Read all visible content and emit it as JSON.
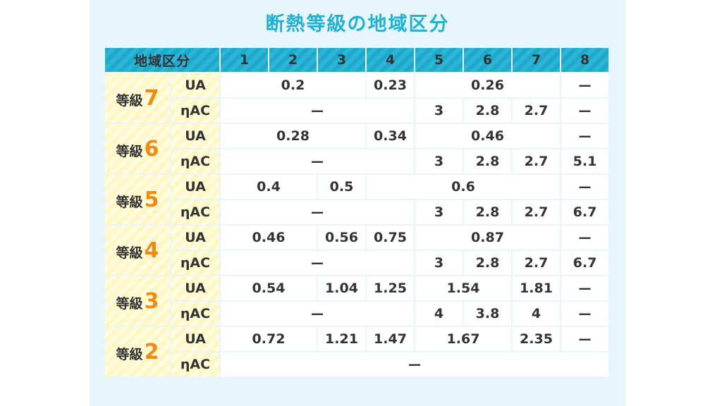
{
  "title": "断熱等級の地域区分",
  "header": {
    "label": "地域区分",
    "regions": [
      "1",
      "2",
      "3",
      "4",
      "5",
      "6",
      "7",
      "8"
    ]
  },
  "grades": [
    {
      "prefix": "等級",
      "num": "7",
      "ua": [
        {
          "v": "0.2",
          "span": 3
        },
        {
          "v": "0.23",
          "span": 1
        },
        {
          "v": "0.26",
          "span": 3
        },
        {
          "v": "ー",
          "span": 1
        }
      ],
      "eta": [
        {
          "v": "ー",
          "span": 4
        },
        {
          "v": "3",
          "span": 1
        },
        {
          "v": "2.8",
          "span": 1
        },
        {
          "v": "2.7",
          "span": 1
        },
        {
          "v": "ー",
          "span": 1
        }
      ]
    },
    {
      "prefix": "等級",
      "num": "6",
      "ua": [
        {
          "v": "0.28",
          "span": 3
        },
        {
          "v": "0.34",
          "span": 1
        },
        {
          "v": "0.46",
          "span": 3
        },
        {
          "v": "ー",
          "span": 1
        }
      ],
      "eta": [
        {
          "v": "ー",
          "span": 4
        },
        {
          "v": "3",
          "span": 1
        },
        {
          "v": "2.8",
          "span": 1
        },
        {
          "v": "2.7",
          "span": 1
        },
        {
          "v": "5.1",
          "span": 1
        }
      ]
    },
    {
      "prefix": "等級",
      "num": "5",
      "ua": [
        {
          "v": "0.4",
          "span": 2
        },
        {
          "v": "0.5",
          "span": 1
        },
        {
          "v": "0.6",
          "span": 4
        },
        {
          "v": "ー",
          "span": 1
        }
      ],
      "eta": [
        {
          "v": "ー",
          "span": 4
        },
        {
          "v": "3",
          "span": 1
        },
        {
          "v": "2.8",
          "span": 1
        },
        {
          "v": "2.7",
          "span": 1
        },
        {
          "v": "6.7",
          "span": 1
        }
      ]
    },
    {
      "prefix": "等級",
      "num": "4",
      "ua": [
        {
          "v": "0.46",
          "span": 2
        },
        {
          "v": "0.56",
          "span": 1
        },
        {
          "v": "0.75",
          "span": 1
        },
        {
          "v": "0.87",
          "span": 3
        },
        {
          "v": "ー",
          "span": 1
        }
      ],
      "eta": [
        {
          "v": "ー",
          "span": 4
        },
        {
          "v": "3",
          "span": 1
        },
        {
          "v": "2.8",
          "span": 1
        },
        {
          "v": "2.7",
          "span": 1
        },
        {
          "v": "6.7",
          "span": 1
        }
      ]
    },
    {
      "prefix": "等級",
      "num": "3",
      "ua": [
        {
          "v": "0.54",
          "span": 2
        },
        {
          "v": "1.04",
          "span": 1
        },
        {
          "v": "1.25",
          "span": 1
        },
        {
          "v": "1.54",
          "span": 2
        },
        {
          "v": "1.81",
          "span": 1
        },
        {
          "v": "ー",
          "span": 1
        }
      ],
      "eta": [
        {
          "v": "ー",
          "span": 4
        },
        {
          "v": "4",
          "span": 1
        },
        {
          "v": "3.8",
          "span": 1
        },
        {
          "v": "4",
          "span": 1
        },
        {
          "v": "ー",
          "span": 1
        }
      ]
    },
    {
      "prefix": "等級",
      "num": "2",
      "ua": [
        {
          "v": "0.72",
          "span": 2
        },
        {
          "v": "1.21",
          "span": 1
        },
        {
          "v": "1.47",
          "span": 1
        },
        {
          "v": "1.67",
          "span": 2
        },
        {
          "v": "2.35",
          "span": 1
        },
        {
          "v": "ー",
          "span": 1
        }
      ],
      "eta": [
        {
          "v": "ー",
          "span": 8
        }
      ]
    }
  ],
  "metrics": {
    "ua": "UA",
    "eta": "ηAC"
  },
  "colors": {
    "header": "#21b1d3",
    "accent": "#f08a14",
    "grade_bg": "#fff7c2",
    "panel_bg": "#e6f6fb"
  }
}
